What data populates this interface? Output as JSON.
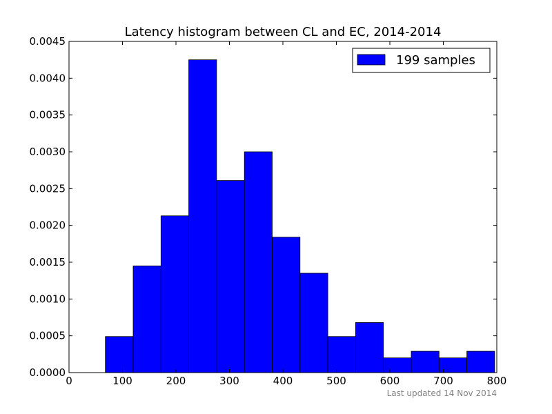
{
  "chart_data": {
    "type": "bar",
    "title": "Latency histogram between CL and EC, 2014-2014",
    "xlabel": "",
    "ylabel": "",
    "xlim": [
      0,
      800
    ],
    "ylim": [
      0,
      0.0045
    ],
    "x_ticks": [
      "0",
      "100",
      "200",
      "300",
      "400",
      "500",
      "600",
      "700",
      "800"
    ],
    "y_ticks": [
      "0.0000",
      "0.0005",
      "0.0010",
      "0.0015",
      "0.0020",
      "0.0025",
      "0.0030",
      "0.0035",
      "0.0040",
      "0.0045"
    ],
    "grid": false,
    "legend_position": "top-right",
    "series": [
      {
        "name": "199 samples",
        "color": "#0000ff",
        "bins": [
          {
            "start": 68,
            "end": 120,
            "value": 0.00049
          },
          {
            "start": 120,
            "end": 172,
            "value": 0.00145
          },
          {
            "start": 172,
            "end": 224,
            "value": 0.00213
          },
          {
            "start": 224,
            "end": 276,
            "value": 0.00425
          },
          {
            "start": 276,
            "end": 328,
            "value": 0.00261
          },
          {
            "start": 328,
            "end": 380,
            "value": 0.003
          },
          {
            "start": 380,
            "end": 432,
            "value": 0.00184
          },
          {
            "start": 432,
            "end": 484,
            "value": 0.00135
          },
          {
            "start": 484,
            "end": 536,
            "value": 0.00049
          },
          {
            "start": 536,
            "end": 588,
            "value": 0.00068
          },
          {
            "start": 588,
            "end": 640,
            "value": 0.0002
          },
          {
            "start": 640,
            "end": 692,
            "value": 0.00029
          },
          {
            "start": 692,
            "end": 744,
            "value": 0.0002
          },
          {
            "start": 744,
            "end": 796,
            "value": 0.00029
          }
        ]
      }
    ]
  },
  "footer": {
    "updated_text": "Last updated 14 Nov 2014"
  }
}
